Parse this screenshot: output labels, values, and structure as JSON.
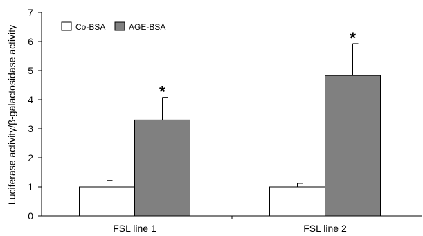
{
  "chart_data": {
    "type": "bar",
    "categories": [
      "FSL line 1",
      "FSL line 2"
    ],
    "ylabel": "Luciferase activity/β-galactosidase activity",
    "xlabel": "",
    "ylim": [
      0,
      7
    ],
    "yticks": [
      0,
      1,
      2,
      3,
      4,
      5,
      6,
      7
    ],
    "grid": false,
    "legend_position": "top-left",
    "series": [
      {
        "name": "Co-BSA",
        "color": "#ffffff",
        "values": [
          1.0,
          1.0
        ],
        "errors": [
          0.22,
          0.12
        ],
        "annotations": [
          "",
          ""
        ]
      },
      {
        "name": "AGE-BSA",
        "color": "#808080",
        "values": [
          3.3,
          4.83
        ],
        "errors": [
          0.78,
          1.1
        ],
        "annotations": [
          "*",
          "*"
        ]
      }
    ]
  }
}
